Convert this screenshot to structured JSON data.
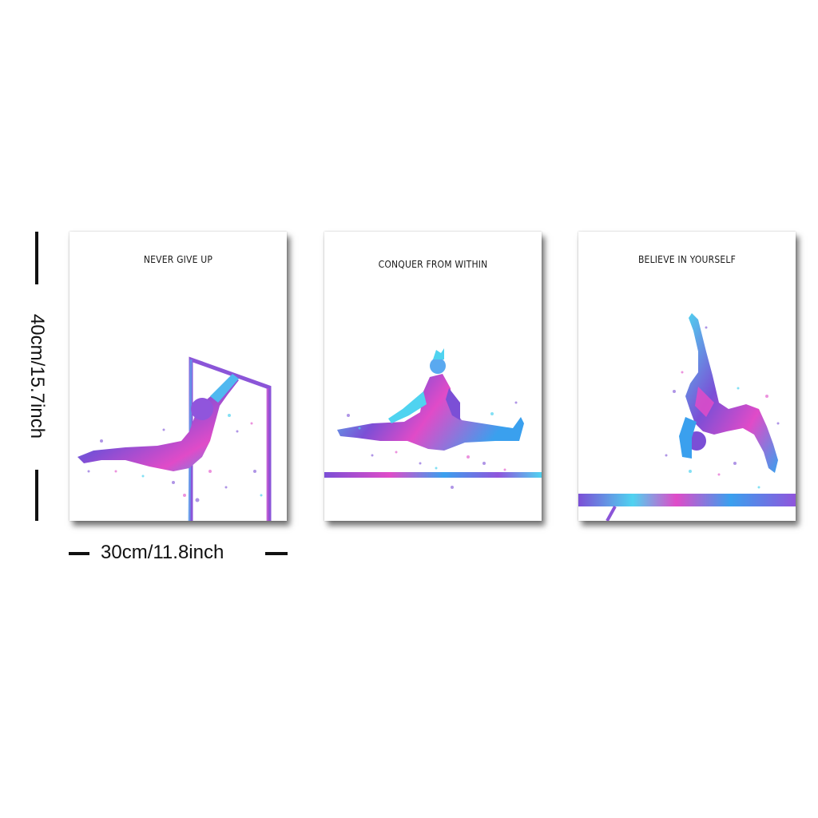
{
  "dimensions": {
    "width_label": "30cm/11.8inch",
    "height_label": "40cm/15.7inch"
  },
  "posters": [
    {
      "caption": "NEVER GIVE UP",
      "art": "gymnast-bars-icon"
    },
    {
      "caption": "CONQUER FROM WITHIN",
      "art": "gymnast-split-leap-icon"
    },
    {
      "caption": "BELIEVE IN YOURSELF",
      "art": "gymnast-beam-walkover-icon"
    }
  ],
  "colors": {
    "purple": "#7b4fd6",
    "blue": "#3aa0ee",
    "cyan": "#4fd3f0",
    "magenta": "#e04bc8",
    "text": "#1a1a1a"
  }
}
